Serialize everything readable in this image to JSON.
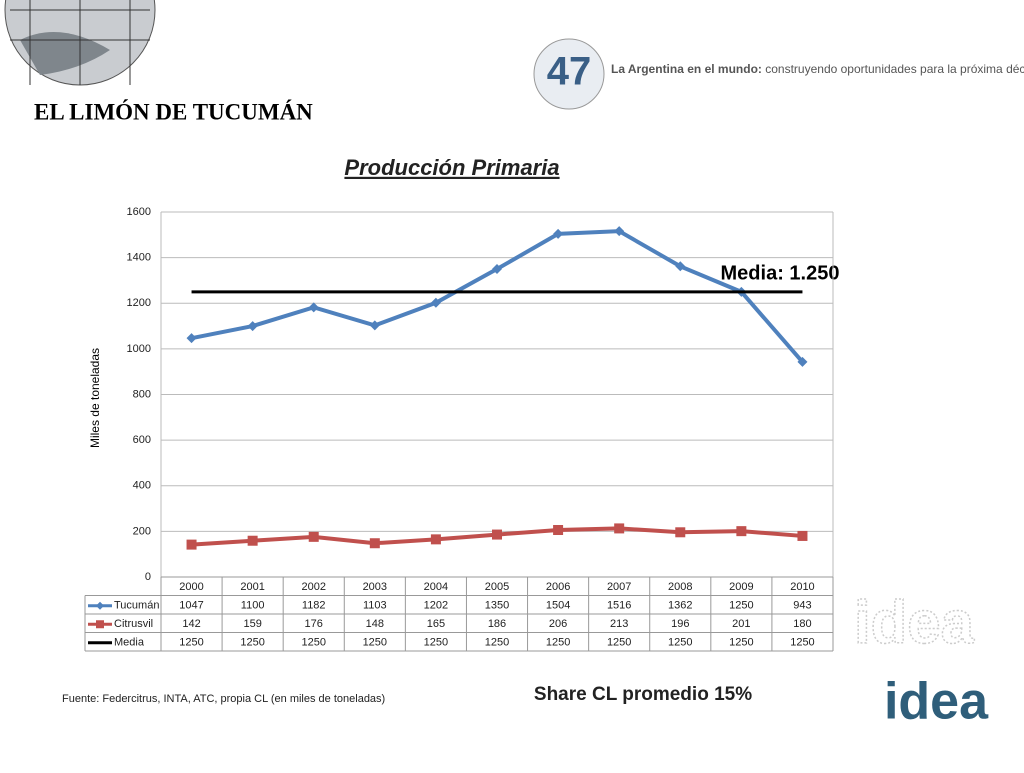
{
  "header": {
    "tagline_bold": "La Argentina en el mundo:",
    "tagline": "construyendo oportunidades para la próxima década",
    "logo": "47"
  },
  "slide_title": "EL LIMÓN DE TUCUMÁN",
  "chart_data": {
    "type": "line",
    "title": "Producción Primaria",
    "y_label": "Miles de toneladas",
    "categories": [
      "2000",
      "2001",
      "2002",
      "2003",
      "2004",
      "2005",
      "2006",
      "2007",
      "2008",
      "2009",
      "2010"
    ],
    "series": [
      {
        "name": "Tucumán",
        "color": "#4f81bd",
        "marker": "diamond",
        "values": [
          1047,
          1100,
          1182,
          1103,
          1202,
          1350,
          1504,
          1516,
          1362,
          1250,
          943
        ]
      },
      {
        "name": "Citrusvil",
        "color": "#c0504d",
        "marker": "square",
        "values": [
          142,
          159,
          176,
          148,
          165,
          186,
          206,
          213,
          196,
          201,
          180
        ]
      },
      {
        "name": "Media",
        "color": "#000000",
        "marker": "none",
        "values": [
          1250,
          1250,
          1250,
          1250,
          1250,
          1250,
          1250,
          1250,
          1250,
          1250,
          1250
        ]
      }
    ],
    "ylim": [
      0,
      1600
    ],
    "yticks": [
      0,
      200,
      400,
      600,
      800,
      1000,
      1200,
      1400,
      1600
    ],
    "grid": true,
    "annotation": "Media: 1.250"
  },
  "footer": {
    "source": "Fuente: Federcitrus,  INTA, ATC, propia CL (en miles de toneladas)",
    "note": "Share CL promedio 15%",
    "logo_light": "idea",
    "logo_dark": "idea"
  }
}
